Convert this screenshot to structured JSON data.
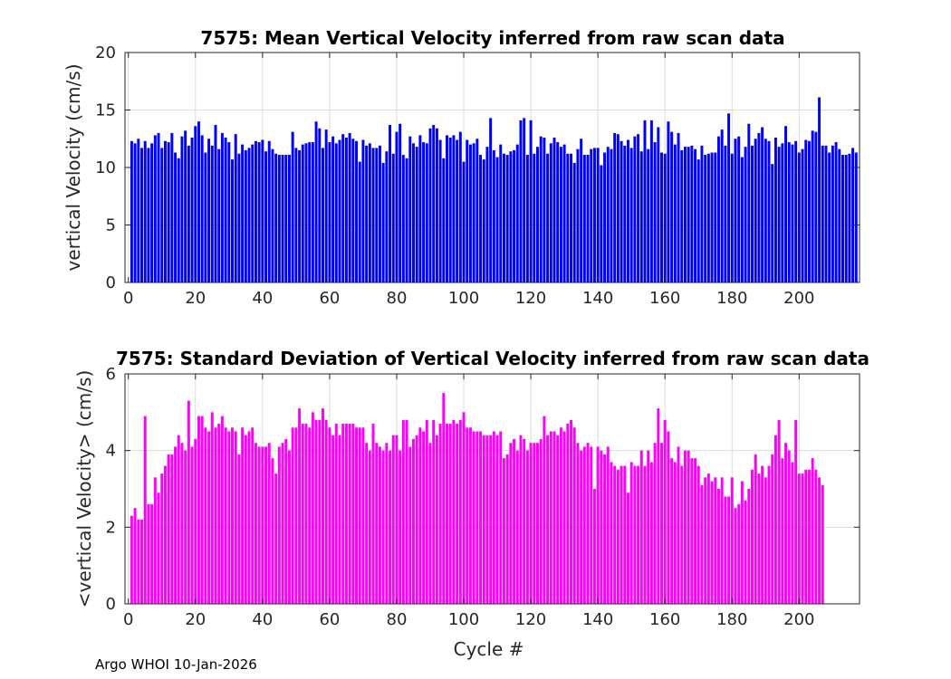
{
  "footer": "Argo WHOI 10-Jan-2026",
  "chart_data": [
    {
      "type": "bar",
      "title": "7575: Mean Vertical Velocity inferred from raw scan data",
      "xlabel": "",
      "ylabel": "vertical Velocity (cm/s)",
      "xlim": [
        -1,
        218
      ],
      "ylim": [
        0,
        20
      ],
      "xticks": [
        0,
        20,
        40,
        60,
        80,
        100,
        120,
        140,
        160,
        180,
        200
      ],
      "yticks": [
        0,
        5,
        10,
        15,
        20
      ],
      "grid": true,
      "color": "#0000ff",
      "x_start": 1,
      "values": [
        12.3,
        12.1,
        12.5,
        11.7,
        12.3,
        11.7,
        12.1,
        12.8,
        13.0,
        11.7,
        12.3,
        12.2,
        13.0,
        11.3,
        10.8,
        12.7,
        13.2,
        11.9,
        12.6,
        13.6,
        14.0,
        12.8,
        11.3,
        12.5,
        11.9,
        13.7,
        11.6,
        13.0,
        12.6,
        12.2,
        10.7,
        12.9,
        11.2,
        12.0,
        11.5,
        11.7,
        12.0,
        12.3,
        12.2,
        12.4,
        11.4,
        12.3,
        11.6,
        11.2,
        11.1,
        11.1,
        11.1,
        11.1,
        13.1,
        11.7,
        11.5,
        12.0,
        12.1,
        12.2,
        12.2,
        14.0,
        13.4,
        11.7,
        13.3,
        12.2,
        12.7,
        12.1,
        12.4,
        12.9,
        12.6,
        13.0,
        12.5,
        12.3,
        10.5,
        12.4,
        11.9,
        12.1,
        11.7,
        11.7,
        11.9,
        10.4,
        11.4,
        13.7,
        11.2,
        13.1,
        13.8,
        11.1,
        10.8,
        12.7,
        12.1,
        11.8,
        12.8,
        12.2,
        12.1,
        13.4,
        13.7,
        13.4,
        12.4,
        10.8,
        12.8,
        12.6,
        12.8,
        12.4,
        13.1,
        10.5,
        12.4,
        12.0,
        12.1,
        12.5,
        11.1,
        10.7,
        11.8,
        14.3,
        11.5,
        10.9,
        12.0,
        11.2,
        11.1,
        11.4,
        11.5,
        12.0,
        14.1,
        14.3,
        11.1,
        14.1,
        11.2,
        11.8,
        12.7,
        12.6,
        11.2,
        12.1,
        12.6,
        12.2,
        11.8,
        12.0,
        11.2,
        11.2,
        10.4,
        11.6,
        12.5,
        11.1,
        11.1,
        11.6,
        11.7,
        11.7,
        10.2,
        11.3,
        11.8,
        11.6,
        13.0,
        12.9,
        12.3,
        11.9,
        12.4,
        11.7,
        12.7,
        12.9,
        11.4,
        14.1,
        11.6,
        14.1,
        12.2,
        13.5,
        11.3,
        11.2,
        14.0,
        13.1,
        12.0,
        13.0,
        11.5,
        11.8,
        11.8,
        11.9,
        11.6,
        10.7,
        11.9,
        11.1,
        11.2,
        11.3,
        11.3,
        12.7,
        13.3,
        11.9,
        14.7,
        11.2,
        12.5,
        12.7,
        10.9,
        11.8,
        13.8,
        11.9,
        12.5,
        13.0,
        13.5,
        12.5,
        12.3,
        10.3,
        12.6,
        11.8,
        12.1,
        13.6,
        12.2,
        12.0,
        12.3,
        11.3,
        11.6,
        12.4,
        12.3,
        13.2,
        13.1,
        16.1,
        11.9,
        11.9,
        11.3,
        11.9,
        12.2,
        11.6,
        11.1,
        11.1,
        11.2,
        11.7,
        11.3
      ]
    },
    {
      "type": "bar",
      "title": "7575: Standard Deviation of Vertical Velocity inferred from raw scan data",
      "xlabel": "Cycle #",
      "ylabel": "<vertical Velocity> (cm/s)",
      "xlim": [
        -1,
        218
      ],
      "ylim": [
        0,
        6
      ],
      "xticks": [
        0,
        20,
        40,
        60,
        80,
        100,
        120,
        140,
        160,
        180,
        200
      ],
      "yticks": [
        0,
        2,
        4,
        6
      ],
      "grid": true,
      "color": "#ff00ff",
      "x_start": 1,
      "values": [
        2.3,
        2.5,
        2.2,
        2.2,
        4.9,
        2.6,
        2.6,
        3.3,
        2.9,
        3.4,
        3.6,
        3.9,
        3.9,
        4.1,
        4.4,
        4.2,
        4.0,
        5.3,
        4.1,
        4.3,
        4.9,
        4.9,
        4.6,
        4.5,
        5.0,
        4.6,
        4.7,
        4.9,
        4.6,
        4.5,
        4.6,
        4.5,
        3.9,
        4.6,
        4.4,
        4.5,
        4.6,
        4.2,
        4.1,
        4.1,
        4.1,
        4.2,
        3.8,
        3.4,
        4.1,
        4.2,
        4.3,
        4.0,
        4.6,
        4.6,
        5.1,
        4.7,
        4.7,
        4.6,
        5.0,
        4.8,
        4.8,
        5.1,
        4.8,
        4.6,
        4.4,
        4.7,
        4.4,
        4.7,
        4.7,
        4.7,
        4.7,
        4.6,
        4.6,
        4.6,
        4.2,
        4.0,
        4.7,
        4.2,
        4.1,
        4.0,
        4.2,
        4.0,
        4.4,
        4.4,
        4.0,
        4.8,
        4.8,
        4.1,
        4.3,
        4.4,
        4.6,
        4.5,
        4.8,
        4.2,
        4.8,
        4.4,
        4.7,
        5.5,
        4.7,
        4.7,
        4.8,
        4.7,
        4.8,
        5.0,
        4.6,
        4.6,
        4.5,
        4.5,
        4.5,
        4.4,
        4.4,
        4.4,
        4.5,
        4.4,
        4.5,
        3.8,
        3.9,
        4.2,
        4.3,
        4.0,
        4.4,
        4.3,
        4.0,
        4.2,
        4.2,
        4.2,
        4.3,
        4.9,
        4.4,
        4.5,
        4.5,
        4.4,
        4.6,
        4.5,
        4.7,
        4.8,
        4.6,
        4.2,
        4.0,
        4.1,
        4.2,
        4.1,
        3.0,
        4.1,
        4.0,
        3.9,
        4.1,
        3.7,
        3.6,
        3.5,
        3.6,
        3.6,
        2.9,
        3.7,
        3.6,
        3.6,
        4.0,
        3.6,
        4.0,
        3.7,
        4.2,
        5.1,
        4.2,
        4.8,
        4.5,
        3.8,
        3.7,
        4.1,
        3.6,
        4.0,
        4.0,
        3.8,
        3.8,
        3.6,
        3.1,
        3.3,
        3.4,
        3.2,
        3.3,
        3.0,
        3.3,
        2.8,
        2.8,
        3.3,
        2.5,
        2.6,
        3.2,
        2.7,
        3.0,
        3.5,
        3.9,
        3.4,
        3.6,
        3.3,
        3.6,
        3.9,
        4.4,
        4.8,
        3.8,
        4.2,
        4.0,
        3.7,
        4.8,
        3.4,
        3.4,
        3.5,
        3.5,
        3.8,
        3.5,
        3.3,
        3.1
      ]
    }
  ]
}
